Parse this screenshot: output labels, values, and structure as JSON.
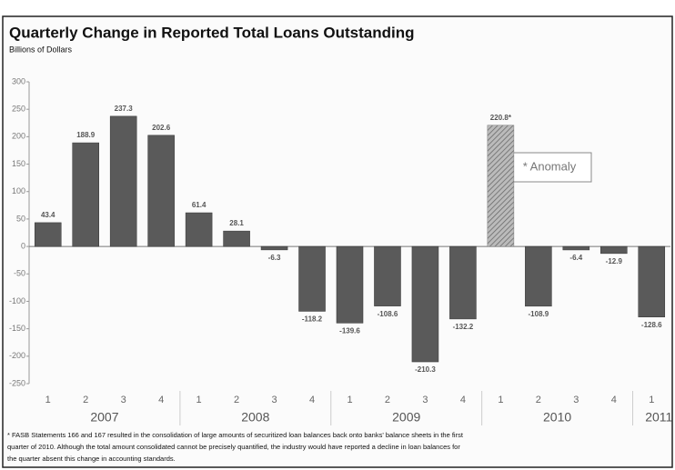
{
  "chart_data": {
    "type": "bar",
    "title": "Quarterly Change in Reported Total Loans Outstanding",
    "subtitle": "Billions of Dollars",
    "categories": [
      "1",
      "2",
      "3",
      "4",
      "1",
      "2",
      "3",
      "4",
      "1",
      "2",
      "3",
      "4",
      "1",
      "2",
      "3",
      "4",
      "1"
    ],
    "groups": [
      {
        "label": "2007",
        "size": 4
      },
      {
        "label": "2008",
        "size": 4
      },
      {
        "label": "2009",
        "size": 4
      },
      {
        "label": "2010",
        "size": 4
      },
      {
        "label": "2011",
        "size": 1
      }
    ],
    "values": [
      43.4,
      188.9,
      237.3,
      202.6,
      61.4,
      28.1,
      -6.3,
      -118.2,
      -139.6,
      -108.6,
      -210.3,
      -132.2,
      220.8,
      -108.9,
      -6.4,
      -12.9,
      -128.6
    ],
    "value_labels": [
      "43.4",
      "188.9",
      "237.3",
      "202.6",
      "61.4",
      "28.1",
      "-6.3",
      "-118.2",
      "-139.6",
      "-108.6",
      "-210.3",
      "-132.2",
      "220.8*",
      "-108.9",
      "-6.4",
      "-12.9",
      "-128.6"
    ],
    "patterns": [
      "solid",
      "solid",
      "solid",
      "solid",
      "solid",
      "solid",
      "solid",
      "solid",
      "solid",
      "solid",
      "solid",
      "solid",
      "hatched",
      "solid",
      "solid",
      "solid",
      "solid"
    ],
    "color": "#5a5a5a",
    "ylim": [
      -250,
      300
    ],
    "yticks": [
      -250,
      -200,
      -150,
      -100,
      -50,
      0,
      50,
      100,
      150,
      200,
      250,
      300
    ],
    "grid": false,
    "annotation": "* Anomaly",
    "footnote": [
      "* FASB Statements 166 and 167 resulted in the consolidation of large amounts of securitized loan balances back onto banks' balance sheets in the first",
      "quarter of 2010. Although the total amount consolidated cannot be precisely quantified, the industry would have reported a decline in loan balances for",
      "the quarter absent this change in accounting standards."
    ]
  }
}
